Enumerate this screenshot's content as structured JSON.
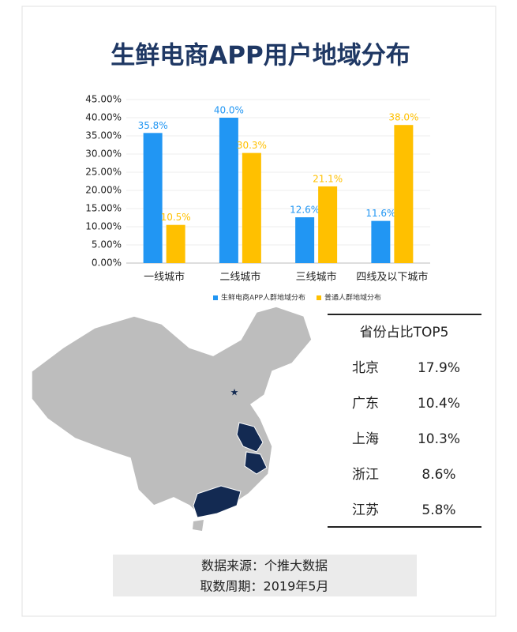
{
  "chart_data": {
    "type": "bar",
    "title": "生鲜电商APP用户地域分布",
    "categories": [
      "一线城市",
      "二线城市",
      "三线城市",
      "四线及以下城市"
    ],
    "series": [
      {
        "name": "生鲜电商APP人群地域分布",
        "color": "#2196f3",
        "values": [
          35.8,
          40.0,
          12.6,
          11.6
        ],
        "value_labels": [
          "35.8%",
          "40.0%",
          "12.6%",
          "11.6%"
        ]
      },
      {
        "name": "普通人群地域分布",
        "color": "#ffc000",
        "values": [
          10.5,
          30.3,
          21.1,
          38.0
        ],
        "value_labels": [
          "10.5%",
          "30.3%",
          "21.1%",
          "38.0%"
        ]
      }
    ],
    "ylim": [
      0,
      45
    ],
    "yticks": [
      {
        "value": 0,
        "label": "0.00%"
      },
      {
        "value": 5,
        "label": "5.00%"
      },
      {
        "value": 10,
        "label": "10.00%"
      },
      {
        "value": 15,
        "label": "15.00%"
      },
      {
        "value": 20,
        "label": "20.00%"
      },
      {
        "value": 25,
        "label": "25.00%"
      },
      {
        "value": 30,
        "label": "30.00%"
      },
      {
        "value": 35,
        "label": "35.00%"
      },
      {
        "value": 40,
        "label": "40.00%"
      },
      {
        "value": 45,
        "label": "45.00%"
      }
    ],
    "grid": true,
    "legend": "bottom"
  },
  "table": {
    "title": "省份占比TOP5",
    "rows": [
      [
        "北京",
        "17.9%"
      ],
      [
        "广东",
        "10.4%"
      ],
      [
        "上海",
        "10.3%"
      ],
      [
        "浙江",
        "8.6%"
      ],
      [
        "江苏",
        "5.8%"
      ]
    ]
  },
  "footer": {
    "source": "数据来源：个推大数据",
    "period": "取数周期：2019年5月"
  }
}
